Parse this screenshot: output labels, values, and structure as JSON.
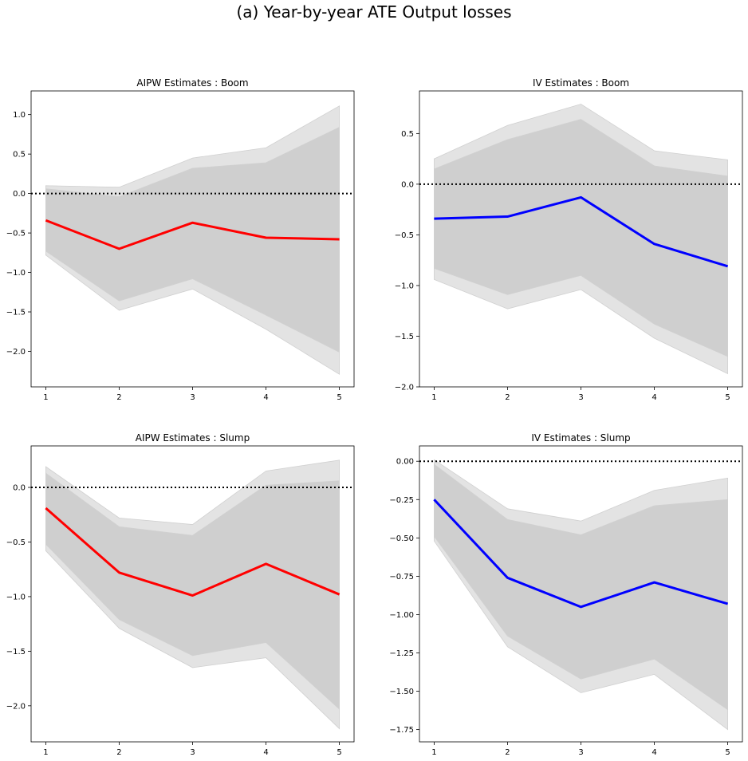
{
  "figure_title": "(a) Year-by-year ATE Output losses",
  "colors": {
    "outer_band": "#e3e3e3",
    "inner_band": "#cfcfcf",
    "aipw_line": "#ff0000",
    "iv_line": "#0000ff",
    "zero_line": "#000000"
  },
  "chart_data": [
    {
      "type": "line",
      "title": "AIPW Estimates : Boom",
      "x": [
        1,
        2,
        3,
        4,
        5
      ],
      "ylim": [
        -2.45,
        1.3
      ],
      "yticks": [
        1.0,
        0.5,
        0.0,
        -0.5,
        -1.0,
        -1.5,
        -2.0
      ],
      "yticklabels": [
        "1.0",
        "0.5",
        "0.0",
        "−0.5",
        "−1.0",
        "−1.5",
        "−2.0"
      ],
      "series": [
        {
          "values": [
            -0.34,
            -0.7,
            -0.37,
            -0.56,
            -0.58
          ]
        }
      ],
      "inner_band": {
        "lower": [
          -0.73,
          -1.36,
          -1.08,
          -1.54,
          -2.01
        ],
        "upper": [
          0.06,
          -0.04,
          0.32,
          0.39,
          0.84
        ]
      },
      "outer_band": {
        "lower": [
          -0.78,
          -1.48,
          -1.21,
          -1.72,
          -2.29
        ],
        "upper": [
          0.1,
          0.08,
          0.45,
          0.58,
          1.11
        ]
      },
      "reference_line": 0.0
    },
    {
      "type": "line",
      "title": "IV Estimates : Boom",
      "x": [
        1,
        2,
        3,
        4,
        5
      ],
      "ylim": [
        -2.0,
        0.92
      ],
      "yticks": [
        0.5,
        0.0,
        -0.5,
        -1.0,
        -1.5,
        -2.0
      ],
      "yticklabels": [
        "0.5",
        "0.0",
        "−0.5",
        "−1.0",
        "−1.5",
        "−2.0"
      ],
      "series": [
        {
          "values": [
            -0.34,
            -0.32,
            -0.13,
            -0.59,
            -0.81
          ]
        }
      ],
      "inner_band": {
        "lower": [
          -0.83,
          -1.09,
          -0.9,
          -1.38,
          -1.7
        ],
        "upper": [
          0.15,
          0.44,
          0.64,
          0.18,
          0.08
        ]
      },
      "outer_band": {
        "lower": [
          -0.94,
          -1.23,
          -1.04,
          -1.52,
          -1.87
        ],
        "upper": [
          0.25,
          0.58,
          0.79,
          0.33,
          0.24
        ]
      },
      "reference_line": 0.0
    },
    {
      "type": "line",
      "title": "AIPW Estimates : Slump",
      "x": [
        1,
        2,
        3,
        4,
        5
      ],
      "ylim": [
        -2.33,
        0.38
      ],
      "yticks": [
        0.0,
        -0.5,
        -1.0,
        -1.5,
        -2.0
      ],
      "yticklabels": [
        "0.0",
        "−0.5",
        "−1.0",
        "−1.5",
        "−2.0"
      ],
      "series": [
        {
          "values": [
            -0.19,
            -0.78,
            -0.99,
            -0.7,
            -0.98
          ]
        }
      ],
      "inner_band": {
        "lower": [
          -0.52,
          -1.21,
          -1.54,
          -1.42,
          -2.03
        ],
        "upper": [
          0.13,
          -0.36,
          -0.44,
          0.02,
          0.06
        ]
      },
      "outer_band": {
        "lower": [
          -0.58,
          -1.29,
          -1.65,
          -1.56,
          -2.21
        ],
        "upper": [
          0.19,
          -0.28,
          -0.34,
          0.15,
          0.25
        ]
      },
      "reference_line": 0.0
    },
    {
      "type": "line",
      "title": "IV Estimates : Slump",
      "x": [
        1,
        2,
        3,
        4,
        5
      ],
      "ylim": [
        -1.83,
        0.1
      ],
      "yticks": [
        0.0,
        -0.25,
        -0.5,
        -0.75,
        -1.0,
        -1.25,
        -1.5,
        -1.75
      ],
      "yticklabels": [
        "0.00",
        "−0.25",
        "−0.50",
        "−0.75",
        "−1.00",
        "−1.25",
        "−1.50",
        "−1.75"
      ],
      "series": [
        {
          "values": [
            -0.25,
            -0.76,
            -0.95,
            -0.79,
            -0.93
          ]
        }
      ],
      "inner_band": {
        "lower": [
          -0.49,
          -1.14,
          -1.42,
          -1.29,
          -1.62
        ],
        "upper": [
          -0.02,
          -0.38,
          -0.48,
          -0.29,
          -0.25
        ]
      },
      "outer_band": {
        "lower": [
          -0.52,
          -1.21,
          -1.51,
          -1.39,
          -1.75
        ],
        "upper": [
          0.01,
          -0.31,
          -0.39,
          -0.19,
          -0.11
        ]
      },
      "reference_line": 0.0
    }
  ]
}
